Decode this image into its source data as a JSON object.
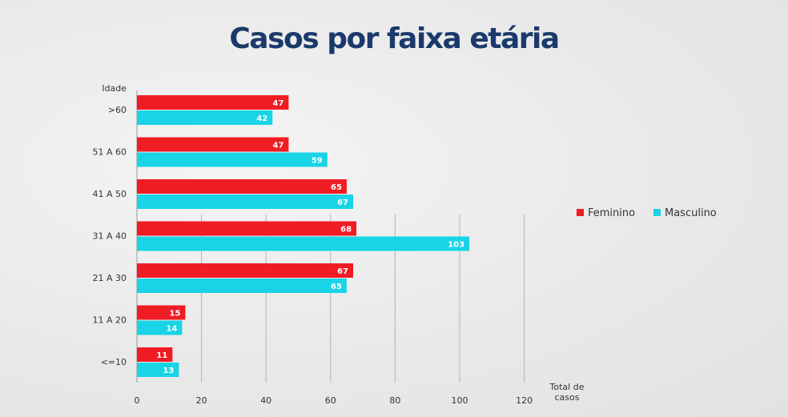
{
  "chart_data": {
    "type": "bar",
    "orientation": "horizontal",
    "title": "Casos por faixa etária",
    "ylabel": "Idade",
    "xlabel": [
      "Total de",
      "casos"
    ],
    "xlim": [
      0,
      120
    ],
    "xticks": [
      0,
      20,
      40,
      60,
      80,
      100,
      120
    ],
    "grid": "vertical",
    "legend": "right",
    "categories": [
      ">60",
      "51 A 60",
      "41 A 50",
      "31 A 40",
      "21 A 30",
      "11 A 20",
      "<=10"
    ],
    "series": [
      {
        "name": "Feminino",
        "color": "#ef1c24",
        "values": [
          47,
          47,
          65,
          68,
          67,
          15,
          11
        ]
      },
      {
        "name": "Masculino",
        "color": "#19d3e6",
        "values": [
          42,
          59,
          67,
          103,
          65,
          14,
          13
        ]
      }
    ]
  }
}
